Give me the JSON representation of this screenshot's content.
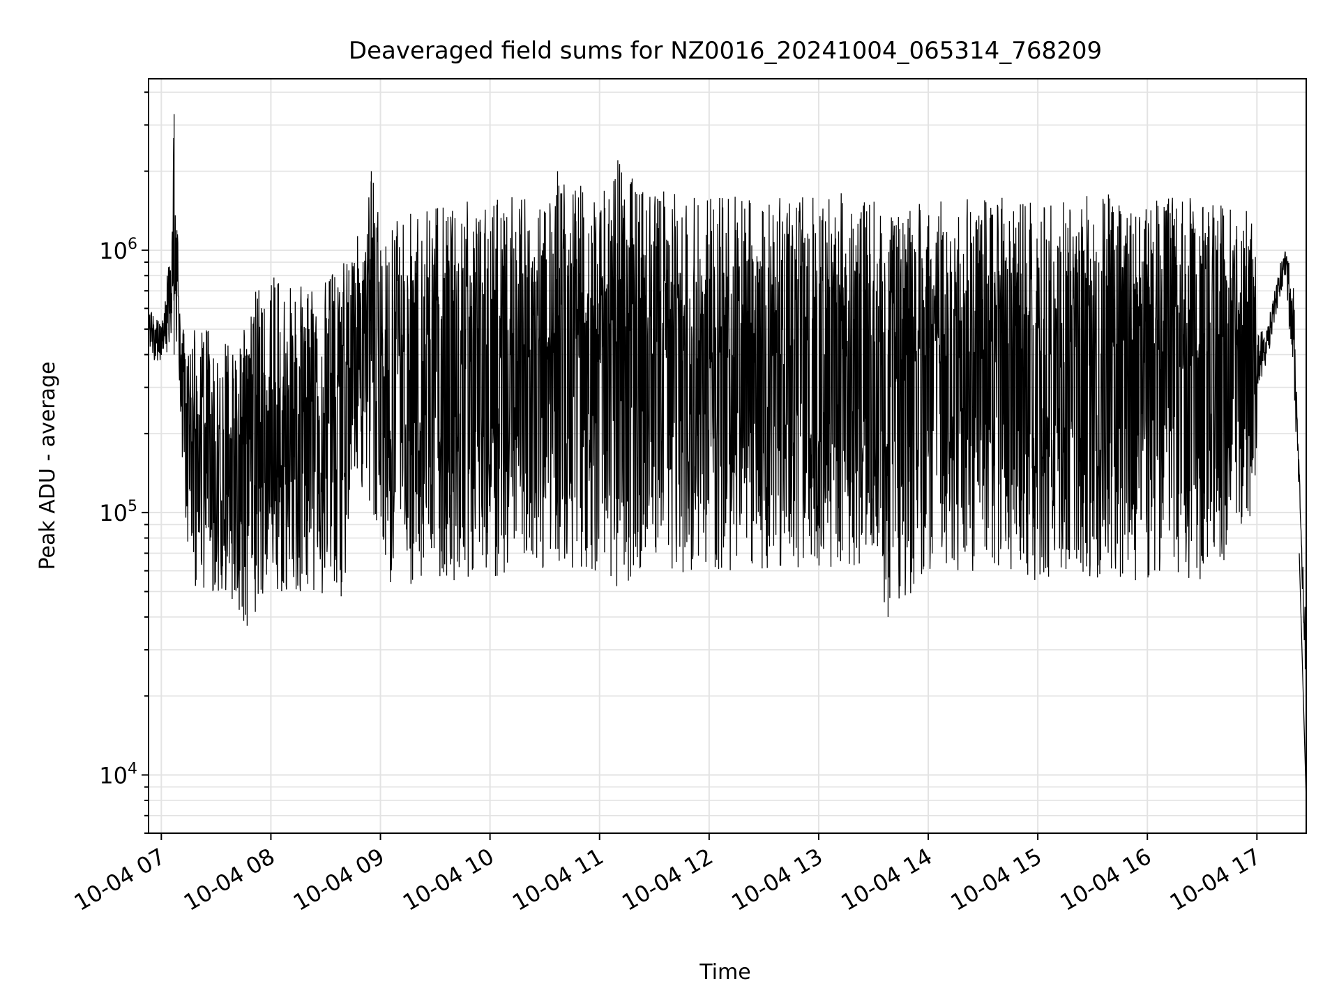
{
  "chart_data": {
    "type": "line",
    "title": "Deaveraged field sums for NZ0016_20241004_065314_768209",
    "xlabel": "Time",
    "ylabel": "Peak ADU - average",
    "xscale": "time",
    "yscale": "log",
    "xlim": [
      "2024-10-04 06:53",
      "2024-10-04 17:27"
    ],
    "ylim": [
      6000,
      4500000
    ],
    "grid": true,
    "x_tick_labels": [
      "10-04 07",
      "10-04 08",
      "10-04 09",
      "10-04 10",
      "10-04 11",
      "10-04 12",
      "10-04 13",
      "10-04 14",
      "10-04 15",
      "10-04 16",
      "10-04 17"
    ],
    "y_tick_labels": [
      {
        "base": "10",
        "exp": "4",
        "value": 10000
      },
      {
        "base": "10",
        "exp": "5",
        "value": 100000
      },
      {
        "base": "10",
        "exp": "6",
        "value": 1000000
      }
    ],
    "line_color": "#000000",
    "grid_color": "#e3e3e3",
    "series": [
      {
        "x": [
          "2024-10-04 06:53",
          "2024-10-04 07:00",
          "2024-10-04 07:05",
          "2024-10-04 07:07",
          "2024-10-04 07:10",
          "2024-10-04 07:12",
          "2024-10-04 07:15",
          "2024-10-04 07:20",
          "2024-10-04 07:30",
          "2024-10-04 07:40",
          "2024-10-04 07:47",
          "2024-10-04 07:50",
          "2024-10-04 08:00",
          "2024-10-04 08:10",
          "2024-10-04 08:20",
          "2024-10-04 08:30",
          "2024-10-04 08:33",
          "2024-10-04 08:40",
          "2024-10-04 08:45",
          "2024-10-04 08:50",
          "2024-10-04 08:55",
          "2024-10-04 09:00",
          "2024-10-04 09:30",
          "2024-10-04 10:00",
          "2024-10-04 10:30",
          "2024-10-04 10:37",
          "2024-10-04 11:00",
          "2024-10-04 11:10",
          "2024-10-04 11:30",
          "2024-10-04 12:00",
          "2024-10-04 12:30",
          "2024-10-04 13:00",
          "2024-10-04 13:30",
          "2024-10-04 13:38",
          "2024-10-04 14:00",
          "2024-10-04 14:30",
          "2024-10-04 15:00",
          "2024-10-04 15:30",
          "2024-10-04 16:00",
          "2024-10-04 16:30",
          "2024-10-04 16:55",
          "2024-10-04 17:05",
          "2024-10-04 17:15",
          "2024-10-04 17:20",
          "2024-10-04 17:24",
          "2024-10-04 17:27"
        ],
        "min": [
          380000,
          380000,
          400000,
          400000,
          300000,
          90000,
          50000,
          50000,
          50000,
          40000,
          37000,
          40000,
          50000,
          50000,
          50000,
          45000,
          40000,
          45000,
          150000,
          120000,
          100000,
          50000,
          55000,
          55000,
          60000,
          60000,
          60000,
          52000,
          60000,
          55000,
          60000,
          60000,
          60000,
          40000,
          55000,
          60000,
          55000,
          55000,
          55000,
          55000,
          80000,
          250000,
          550000,
          120000,
          60000,
          8000
        ],
        "max": [
          600000,
          550000,
          1000000,
          3300000,
          650000,
          500000,
          500000,
          500000,
          500000,
          500000,
          500000,
          700000,
          800000,
          750000,
          800000,
          800000,
          800000,
          900000,
          1000000,
          1300000,
          2000000,
          1300000,
          1500000,
          1600000,
          1600000,
          2000000,
          1600000,
          2200000,
          1700000,
          1600000,
          1600000,
          1650000,
          1650000,
          1400000,
          1600000,
          1600000,
          1600000,
          1650000,
          1600000,
          1600000,
          1500000,
          700000,
          1500000,
          2100000,
          130000,
          80000
        ]
      }
    ]
  }
}
